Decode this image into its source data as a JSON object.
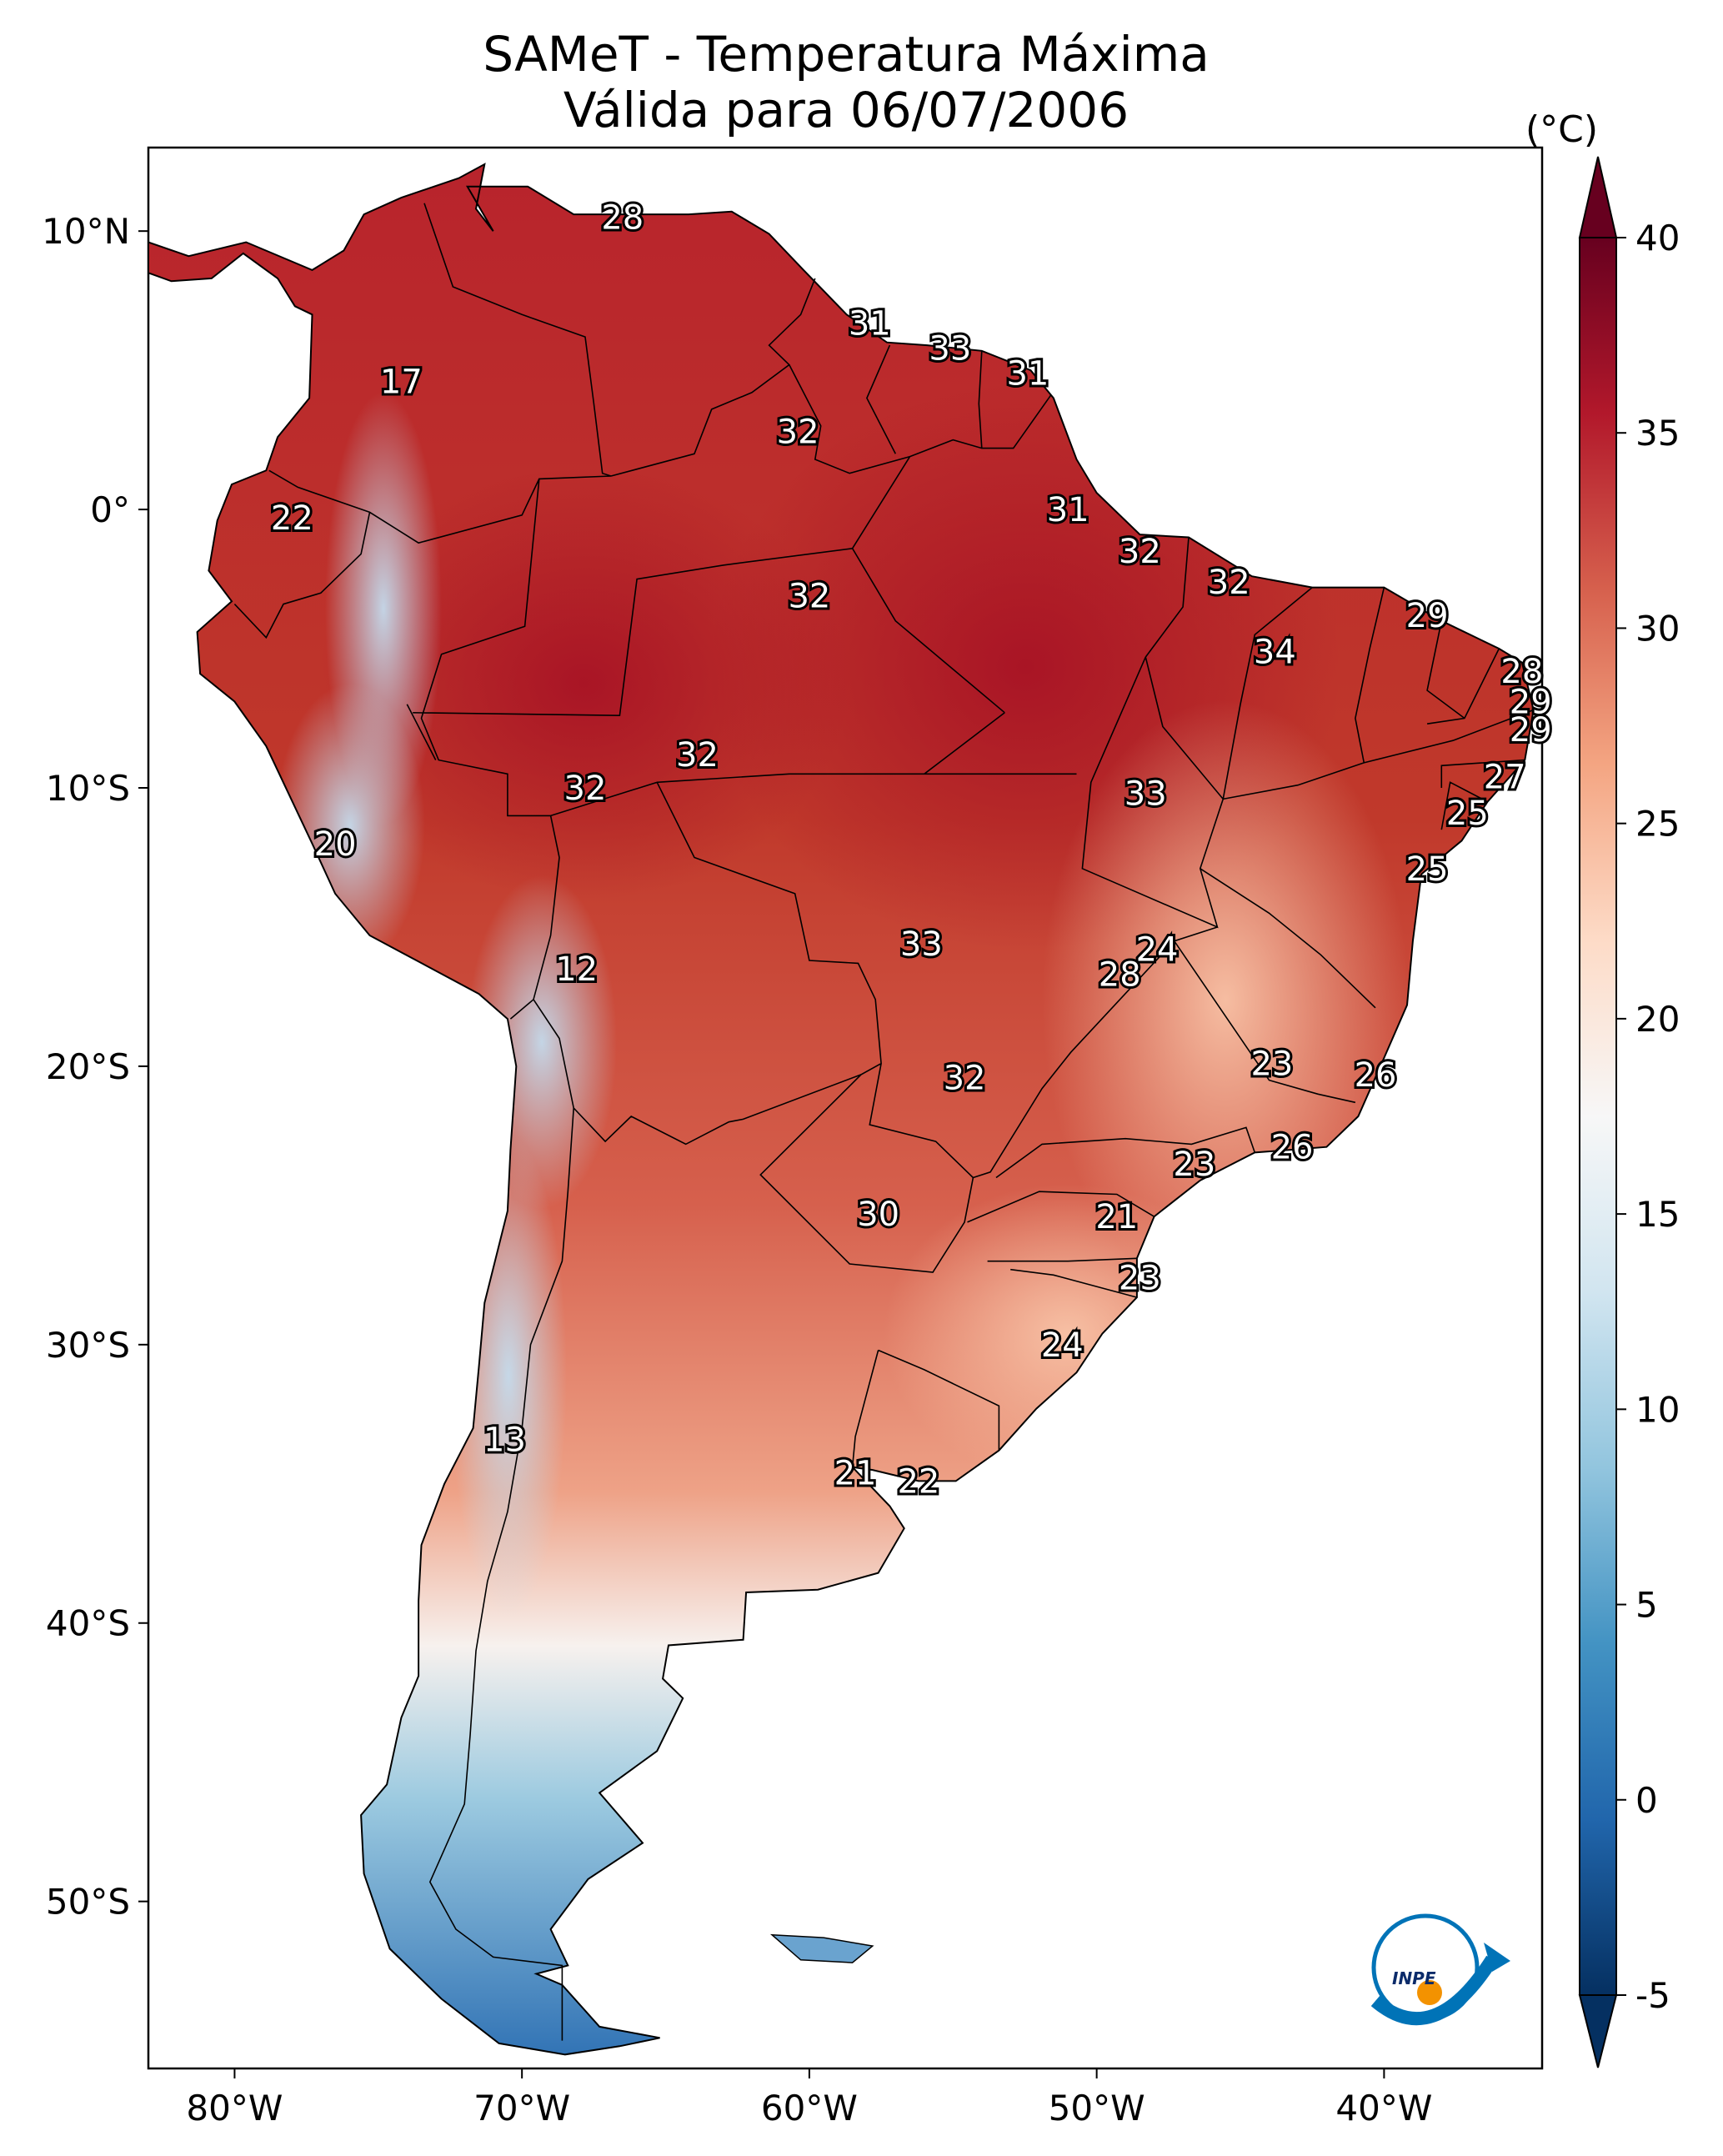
{
  "title": "SAMeT - Temperatura Máxima",
  "subtitle": "Válida para 06/07/2006",
  "colorbar": {
    "unit": "(°C)",
    "range": [
      -5,
      40
    ],
    "ticks": [
      "40",
      "35",
      "30",
      "25",
      "20",
      "15",
      "10",
      "5",
      "0",
      "-5"
    ],
    "colors": [
      "#053061",
      "#2166ac",
      "#4393c3",
      "#92c5de",
      "#d1e5f0",
      "#f7f7f7",
      "#fddbc7",
      "#f4a582",
      "#d6604d",
      "#b2182b",
      "#67001f"
    ]
  },
  "axes": {
    "lat_ticks": [
      "10°N",
      "0°",
      "10°S",
      "20°S",
      "30°S",
      "40°S",
      "50°S"
    ],
    "lon_ticks": [
      "80°W",
      "70°W",
      "60°W",
      "50°W",
      "40°W"
    ]
  },
  "station_labels": [
    {
      "text": "28",
      "lon": -66.5,
      "lat": 10.5
    },
    {
      "text": "17",
      "lon": -74.2,
      "lat": 4.6
    },
    {
      "text": "31",
      "lon": -57.9,
      "lat": 6.7
    },
    {
      "text": "33",
      "lon": -55.1,
      "lat": 5.8
    },
    {
      "text": "31",
      "lon": -52.4,
      "lat": 4.9
    },
    {
      "text": "32",
      "lon": -60.4,
      "lat": 2.8
    },
    {
      "text": "22",
      "lon": -78.0,
      "lat": -0.3
    },
    {
      "text": "31",
      "lon": -51.0,
      "lat": 0.0
    },
    {
      "text": "32",
      "lon": -48.5,
      "lat": -1.5
    },
    {
      "text": "32",
      "lon": -45.4,
      "lat": -2.6
    },
    {
      "text": "32",
      "lon": -60.0,
      "lat": -3.1
    },
    {
      "text": "29",
      "lon": -38.5,
      "lat": -3.8
    },
    {
      "text": "34",
      "lon": -43.8,
      "lat": -5.1
    },
    {
      "text": "28",
      "lon": -35.2,
      "lat": -5.8
    },
    {
      "text": "29",
      "lon": -34.9,
      "lat": -6.9
    },
    {
      "text": "29",
      "lon": -34.9,
      "lat": -7.9
    },
    {
      "text": "32",
      "lon": -63.9,
      "lat": -8.8
    },
    {
      "text": "27",
      "lon": -35.8,
      "lat": -9.6
    },
    {
      "text": "32",
      "lon": -67.8,
      "lat": -10.0
    },
    {
      "text": "33",
      "lon": -48.3,
      "lat": -10.2
    },
    {
      "text": "25",
      "lon": -37.1,
      "lat": -10.9
    },
    {
      "text": "20",
      "lon": -76.5,
      "lat": -12.0
    },
    {
      "text": "25",
      "lon": -38.5,
      "lat": -12.9
    },
    {
      "text": "33",
      "lon": -56.1,
      "lat": -15.6
    },
    {
      "text": "24",
      "lon": -47.9,
      "lat": -15.8
    },
    {
      "text": "28",
      "lon": -49.2,
      "lat": -16.7
    },
    {
      "text": "12",
      "lon": -68.1,
      "lat": -16.5
    },
    {
      "text": "23",
      "lon": -43.9,
      "lat": -19.9
    },
    {
      "text": "26",
      "lon": -40.3,
      "lat": -20.3
    },
    {
      "text": "32",
      "lon": -54.6,
      "lat": -20.4
    },
    {
      "text": "26",
      "lon": -43.2,
      "lat": -22.9
    },
    {
      "text": "23",
      "lon": -46.6,
      "lat": -23.5
    },
    {
      "text": "30",
      "lon": -57.6,
      "lat": -25.3
    },
    {
      "text": "21",
      "lon": -49.3,
      "lat": -25.4
    },
    {
      "text": "23",
      "lon": -48.5,
      "lat": -27.6
    },
    {
      "text": "24",
      "lon": -51.2,
      "lat": -30.0
    },
    {
      "text": "13",
      "lon": -70.6,
      "lat": -33.4
    },
    {
      "text": "21",
      "lon": -58.4,
      "lat": -34.6
    },
    {
      "text": "22",
      "lon": -56.2,
      "lat": -34.9
    }
  ],
  "logo": {
    "text": "INPE"
  }
}
